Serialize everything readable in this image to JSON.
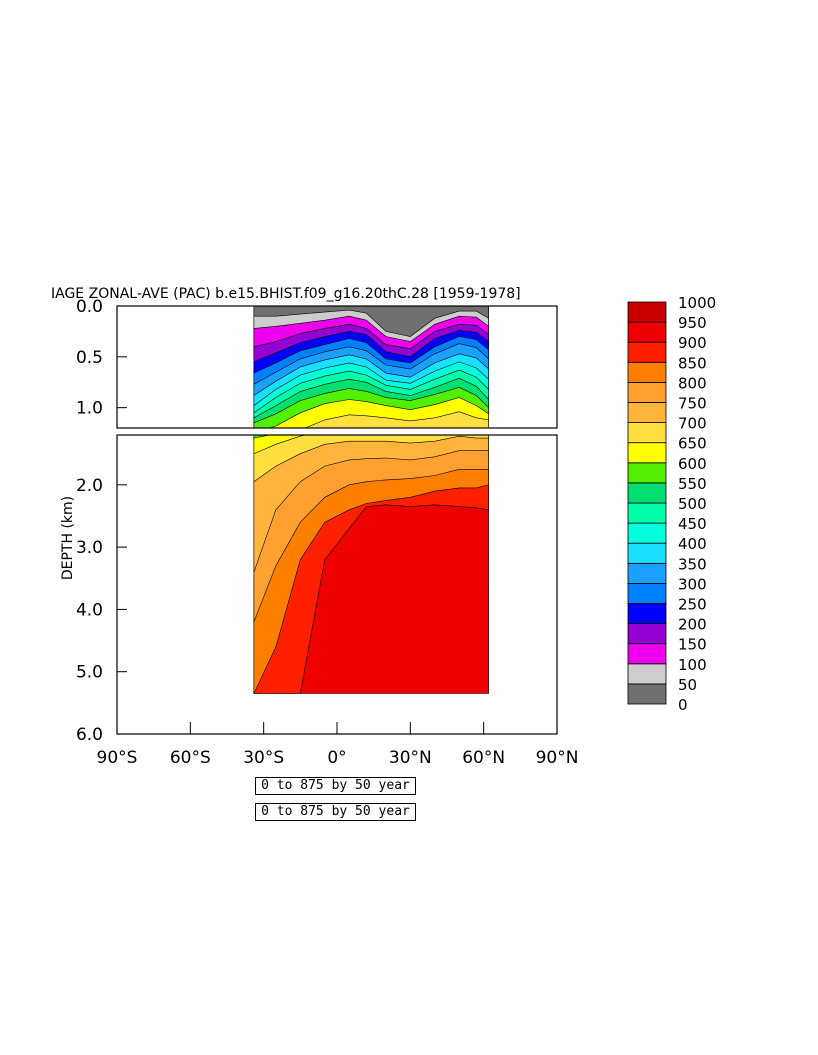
{
  "chart_data": {
    "type": "heatmap",
    "title": "IAGE ZONAL-AVE (PAC) b.e15.BHIST.f09_g16.20thC.28 [1959-1978]",
    "ylabel": "DEPTH (km)",
    "xlabel": "",
    "x_ticks": [
      "90°S",
      "60°S",
      "30°S",
      "0°",
      "30°N",
      "60°N",
      "90°N"
    ],
    "x_tick_values": [
      -90,
      -60,
      -30,
      0,
      30,
      60,
      90
    ],
    "xlim": [
      -90,
      90
    ],
    "upper_panel": {
      "ylim": [
        0.0,
        1.2
      ],
      "y_ticks": [
        "0.0",
        "0.5",
        "1.0"
      ],
      "y_tick_values": [
        0.0,
        0.5,
        1.0
      ]
    },
    "lower_panel": {
      "ylim": [
        1.2,
        6.0
      ],
      "y_ticks": [
        "2.0",
        "3.0",
        "4.0",
        "5.0",
        "6.0"
      ],
      "y_tick_values": [
        2.0,
        3.0,
        4.0,
        5.0,
        6.0
      ]
    },
    "data_extent": {
      "lat_min": -34,
      "lat_max": 62,
      "max_depth_km": 5.35
    },
    "levels": [
      0,
      50,
      100,
      150,
      200,
      250,
      300,
      350,
      400,
      450,
      500,
      550,
      600,
      650,
      700,
      750,
      800,
      850,
      900,
      950,
      1000
    ],
    "colorbar_labels": [
      "1000",
      "950",
      "900",
      "850",
      "800",
      "750",
      "700",
      "650",
      "600",
      "550",
      "500",
      "450",
      "400",
      "350",
      "300",
      "250",
      "200",
      "150",
      "100",
      "50",
      "0"
    ],
    "colors": [
      "#707070",
      "#cdcdcd",
      "#ee00ee",
      "#9400d3",
      "#0000ff",
      "#0080ff",
      "#1aa0ff",
      "#1ae0ff",
      "#00ffdd",
      "#00ffaa",
      "#00e070",
      "#50f000",
      "#ffff00",
      "#ffe040",
      "#ffb43c",
      "#ffa030",
      "#ff8000",
      "#ff2000",
      "#ee0000",
      "#c80000"
    ],
    "profile": [
      {
        "lat": -34,
        "iso": [
          0.1,
          0.22,
          0.4,
          0.55,
          0.66,
          0.77,
          0.88,
          0.98,
          1.05,
          1.1,
          1.15,
          1.25,
          1.5,
          1.95,
          3.4,
          4.2,
          5.35,
          9.0,
          9.0
        ]
      },
      {
        "lat": -25,
        "iso": [
          0.1,
          0.2,
          0.35,
          0.46,
          0.56,
          0.65,
          0.74,
          0.82,
          0.9,
          0.98,
          1.06,
          1.18,
          1.35,
          1.7,
          2.4,
          3.3,
          4.6,
          9.0,
          9.0
        ]
      },
      {
        "lat": -15,
        "iso": [
          0.08,
          0.17,
          0.27,
          0.36,
          0.44,
          0.52,
          0.6,
          0.68,
          0.76,
          0.84,
          0.93,
          1.05,
          1.22,
          1.5,
          1.95,
          2.6,
          3.2,
          5.4,
          9.0
        ]
      },
      {
        "lat": -5,
        "iso": [
          0.06,
          0.14,
          0.22,
          0.3,
          0.38,
          0.45,
          0.53,
          0.61,
          0.69,
          0.77,
          0.86,
          0.96,
          1.12,
          1.35,
          1.7,
          2.2,
          2.6,
          3.2,
          9.0
        ]
      },
      {
        "lat": 5,
        "iso": [
          0.04,
          0.1,
          0.18,
          0.25,
          0.32,
          0.4,
          0.48,
          0.56,
          0.64,
          0.72,
          0.81,
          0.92,
          1.07,
          1.3,
          1.6,
          2.0,
          2.4,
          2.7,
          9.0
        ]
      },
      {
        "lat": 12,
        "iso": [
          0.07,
          0.14,
          0.22,
          0.28,
          0.36,
          0.44,
          0.52,
          0.6,
          0.68,
          0.75,
          0.84,
          0.94,
          1.08,
          1.3,
          1.58,
          1.95,
          2.3,
          2.35,
          9.0
        ]
      },
      {
        "lat": 20,
        "iso": [
          0.25,
          0.3,
          0.38,
          0.45,
          0.52,
          0.58,
          0.66,
          0.73,
          0.78,
          0.84,
          0.9,
          0.98,
          1.1,
          1.3,
          1.57,
          1.92,
          2.25,
          2.32,
          9.0
        ]
      },
      {
        "lat": 30,
        "iso": [
          0.3,
          0.35,
          0.42,
          0.5,
          0.56,
          0.62,
          0.7,
          0.76,
          0.82,
          0.88,
          0.93,
          1.02,
          1.13,
          1.33,
          1.6,
          1.9,
          2.2,
          2.35,
          9.0
        ]
      },
      {
        "lat": 40,
        "iso": [
          0.12,
          0.18,
          0.25,
          0.32,
          0.4,
          0.47,
          0.56,
          0.64,
          0.72,
          0.8,
          0.87,
          0.97,
          1.1,
          1.3,
          1.55,
          1.85,
          2.1,
          2.32,
          9.0
        ]
      },
      {
        "lat": 50,
        "iso": [
          0.05,
          0.1,
          0.18,
          0.24,
          0.3,
          0.37,
          0.47,
          0.55,
          0.63,
          0.71,
          0.8,
          0.9,
          1.04,
          1.22,
          1.45,
          1.75,
          2.05,
          2.35,
          9.0
        ]
      },
      {
        "lat": 57,
        "iso": [
          0.05,
          0.11,
          0.19,
          0.26,
          0.33,
          0.41,
          0.51,
          0.61,
          0.7,
          0.79,
          0.88,
          0.98,
          1.1,
          1.25,
          1.45,
          1.75,
          2.05,
          2.37,
          9.0
        ]
      },
      {
        "lat": 62,
        "iso": [
          0.12,
          0.2,
          0.28,
          0.35,
          0.43,
          0.52,
          0.62,
          0.72,
          0.82,
          0.92,
          1.0,
          1.06,
          1.12,
          1.25,
          1.45,
          1.75,
          2.0,
          2.4,
          9.0
        ]
      }
    ],
    "footnotes": [
      "0 to 875 by 50 year",
      "0 to 875 by 50 year"
    ]
  }
}
